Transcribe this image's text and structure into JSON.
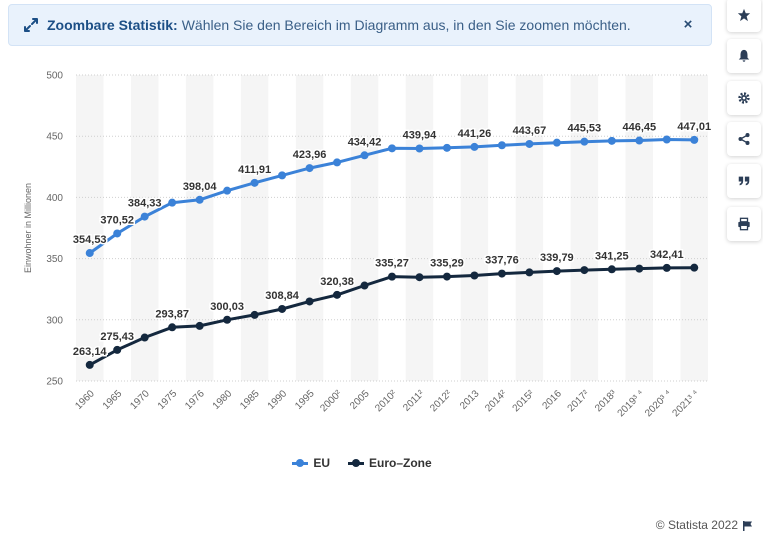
{
  "banner": {
    "title": "Zoombare Statistik:",
    "text": "Wählen Sie den Bereich im Diagramm aus, in den Sie zoomen möchten.",
    "close": "×"
  },
  "toolbar": {
    "buttons": [
      "star-icon",
      "bell-icon",
      "gear-icon",
      "share-icon",
      "quote-icon",
      "print-icon"
    ]
  },
  "colors": {
    "eu": "#3b82d8",
    "eurozone": "#14283e",
    "band": "#f5f5f5",
    "grid": "#cfcfcf"
  },
  "chart_data": {
    "type": "line",
    "title": "",
    "xlabel": "",
    "ylabel": "Einwohner in Millionen",
    "ylim": [
      250,
      500
    ],
    "yticks": [
      250,
      300,
      350,
      400,
      450,
      500
    ],
    "categories": [
      "1960",
      "1965",
      "1970",
      "1975",
      "1976",
      "1980",
      "1985",
      "1990",
      "1995",
      "2000²",
      "2005",
      "2010²",
      "2011²",
      "2012²",
      "2013",
      "2014²",
      "2015²",
      "2016",
      "2017²",
      "2018³",
      "2019³ ⁴",
      "2020³ ⁴",
      "2021³ ⁴"
    ],
    "series": [
      {
        "name": "EU",
        "values": [
          354.53,
          370.52,
          384.33,
          395.7,
          398.04,
          405.5,
          411.91,
          418.0,
          423.96,
          428.6,
          434.42,
          440.1,
          439.94,
          440.5,
          441.26,
          442.6,
          443.67,
          444.7,
          445.53,
          446.2,
          446.45,
          447.3,
          447.01
        ],
        "labels": [
          "354,53",
          "370,52",
          "384,33",
          "",
          "398,04",
          "",
          "411,91",
          "",
          "423,96",
          "",
          "434,42",
          "",
          "439,94",
          "",
          "441,26",
          "",
          "443,67",
          "",
          "445,53",
          "",
          "446,45",
          "",
          "447,01"
        ]
      },
      {
        "name": "Euro-Zone",
        "values": [
          263.14,
          275.43,
          285.5,
          293.87,
          295.0,
          300.03,
          304.0,
          308.84,
          315.0,
          320.38,
          328.0,
          335.27,
          334.8,
          335.29,
          336.2,
          337.76,
          338.7,
          339.79,
          340.6,
          341.25,
          341.8,
          342.41,
          342.6
        ],
        "labels": [
          "263,14",
          "275,43",
          "",
          "293,87",
          "",
          "300,03",
          "",
          "308,84",
          "",
          "320,38",
          "",
          "335,27",
          "",
          "335,29",
          "",
          "337,76",
          "",
          "339,79",
          "",
          "341,25",
          "",
          "342,41",
          ""
        ]
      }
    ],
    "legend": [
      "EU",
      "Euro–Zone"
    ],
    "grid": true
  },
  "source": "© Statista 2022"
}
